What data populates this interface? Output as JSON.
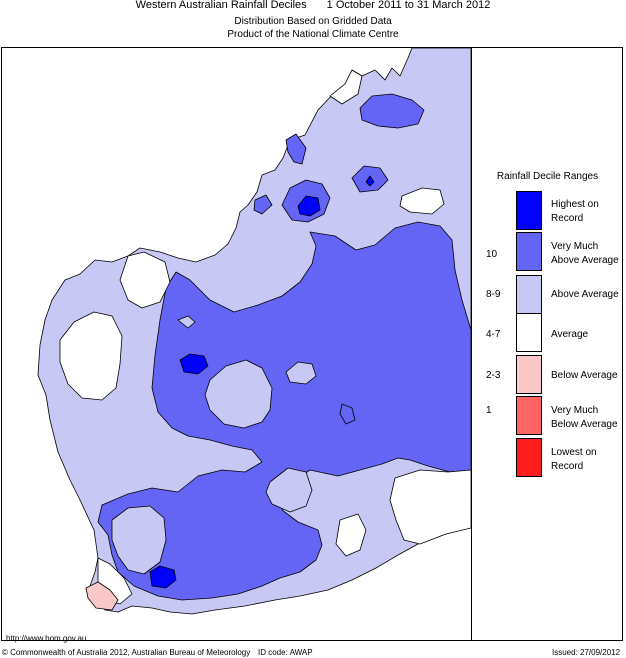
{
  "header": {
    "title": "Western Australian Rainfall Deciles",
    "period": "1 October 2011 to 31 March 2012",
    "subtitle1": "Distribution Based on Gridded Data",
    "subtitle2": "Product of the National Climate Centre"
  },
  "legend": {
    "title": "Rainfall Decile Ranges",
    "items": [
      {
        "label_line1": "Highest on",
        "label_line2": "Record",
        "decile": "",
        "color": "#0000ff"
      },
      {
        "label_line1": "Very Much",
        "label_line2": "Above Average",
        "decile": "10",
        "color": "#6464f5"
      },
      {
        "label_line1": "Above Average",
        "label_line2": "",
        "decile": "8-9",
        "color": "#c8c8f5"
      },
      {
        "label_line1": "Average",
        "label_line2": "",
        "decile": "4-7",
        "color": "#ffffff"
      },
      {
        "label_line1": "Below Average",
        "label_line2": "",
        "decile": "2-3",
        "color": "#fac8c8"
      },
      {
        "label_line1": "Very Much",
        "label_line2": "Below Average",
        "decile": "1",
        "color": "#ff6464"
      },
      {
        "label_line1": "Lowest on",
        "label_line2": "Record",
        "decile": "",
        "color": "#ff1e1e"
      }
    ]
  },
  "footer": {
    "url": "http://www.bom.gov.au",
    "copyright": "© Commonwealth of Australia 2012, Australian Bureau of Meteorology",
    "id_code": "ID code: AWAP",
    "issued": "Issued: 27/09/2012"
  }
}
